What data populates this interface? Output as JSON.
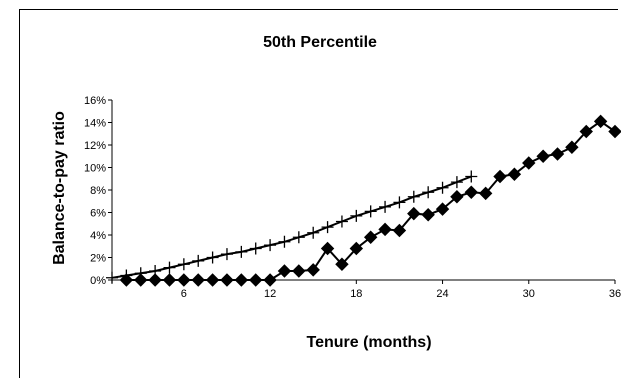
{
  "chart_data": {
    "type": "line",
    "title": "50th Percentile",
    "xlabel": "Tenure (months)",
    "ylabel": "Balance-to-pay ratio",
    "xlim": [
      1,
      36
    ],
    "ylim": [
      0,
      0.16
    ],
    "xticks": [
      {
        "value": 6,
        "label": "6"
      },
      {
        "value": 12,
        "label": "12"
      },
      {
        "value": 18,
        "label": "18"
      },
      {
        "value": 24,
        "label": "24"
      },
      {
        "value": 30,
        "label": "30"
      },
      {
        "value": 36,
        "label": "36"
      }
    ],
    "yticks": [
      {
        "value": 0,
        "label": "0%"
      },
      {
        "value": 0.02,
        "label": "2%"
      },
      {
        "value": 0.04,
        "label": "4%"
      },
      {
        "value": 0.06,
        "label": "6%"
      },
      {
        "value": 0.08,
        "label": "8%"
      },
      {
        "value": 0.1,
        "label": "10%"
      },
      {
        "value": 0.12,
        "label": "12%"
      },
      {
        "value": 0.14,
        "label": "14%"
      },
      {
        "value": 0.16,
        "label": "16%"
      }
    ],
    "grid": false,
    "series": [
      {
        "marker": "diamond",
        "color": "#000000",
        "x": [
          2,
          3,
          4,
          5,
          6,
          7,
          8,
          9,
          10,
          11,
          12,
          13,
          14,
          15,
          16,
          17,
          18,
          19,
          20,
          21,
          22,
          23,
          24,
          25,
          26,
          27,
          28,
          29,
          30,
          31,
          32,
          33,
          34,
          35,
          36
        ],
        "y": [
          0,
          0,
          0,
          0,
          0,
          0,
          0,
          0,
          0,
          0,
          0,
          0.008,
          0.008,
          0.009,
          0.028,
          0.014,
          0.028,
          0.038,
          0.045,
          0.044,
          0.059,
          0.058,
          0.063,
          0.074,
          0.078,
          0.077,
          0.092,
          0.094,
          0.104,
          0.11,
          0.112,
          0.118,
          0.132,
          0.141,
          0.132
        ]
      },
      {
        "marker": "plus",
        "color": "#000000",
        "x": [
          1,
          2,
          3,
          4,
          5,
          6,
          7,
          8,
          9,
          10,
          11,
          12,
          13,
          14,
          15,
          16,
          17,
          18,
          19,
          20,
          21,
          22,
          23,
          24,
          25,
          26
        ],
        "y": [
          0.002,
          0.004,
          0.006,
          0.008,
          0.011,
          0.014,
          0.017,
          0.02,
          0.023,
          0.025,
          0.028,
          0.031,
          0.034,
          0.038,
          0.042,
          0.047,
          0.052,
          0.057,
          0.061,
          0.065,
          0.069,
          0.074,
          0.078,
          0.082,
          0.087,
          0.092
        ]
      }
    ]
  }
}
